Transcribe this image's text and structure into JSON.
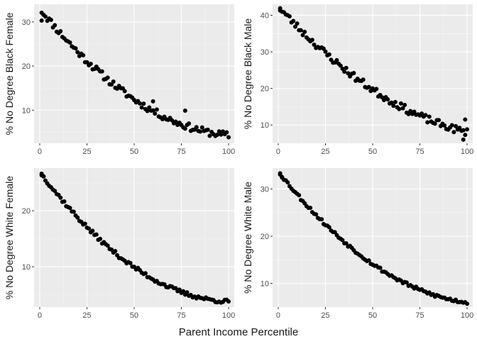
{
  "figure": {
    "xlabel": "Parent Income Percentile"
  },
  "chart_data": [
    {
      "type": "scatter",
      "ylabel": "% No Degree Black Female",
      "xlim": [
        -3,
        103
      ],
      "ylim": [
        2.5,
        34
      ],
      "xticks": [
        0,
        25,
        50,
        75,
        100
      ],
      "yticks": [
        10,
        20,
        30
      ],
      "grid": true,
      "series": [
        {
          "start": [
            0,
            32.5
          ],
          "mid": [
            50,
            12.3
          ],
          "end": [
            100,
            4.3
          ],
          "curve": 1.35,
          "noise": 0.8,
          "seed": 11,
          "outliers": [
            [
              1,
              30.3
            ],
            [
              60,
              12.0
            ],
            [
              77,
              9.9
            ]
          ]
        }
      ]
    },
    {
      "type": "scatter",
      "ylabel": "% No Degree Black Male",
      "xlim": [
        -3,
        103
      ],
      "ylim": [
        5,
        43
      ],
      "xticks": [
        0,
        25,
        50,
        75,
        100
      ],
      "yticks": [
        10,
        20,
        30,
        40
      ],
      "grid": true,
      "series": [
        {
          "start": [
            0,
            41.8
          ],
          "mid": [
            50,
            19.5
          ],
          "end": [
            100,
            8.0
          ],
          "curve": 1.25,
          "noise": 1.0,
          "seed": 23,
          "outliers": [
            [
              1,
              41.9
            ],
            [
              98,
              6.0
            ],
            [
              99,
              11.5
            ]
          ]
        }
      ]
    },
    {
      "type": "scatter",
      "ylabel": "% No Degree White Female",
      "xlim": [
        -3,
        103
      ],
      "ylim": [
        2.8,
        27.6
      ],
      "xticks": [
        0,
        25,
        50,
        75,
        100
      ],
      "yticks": [
        10,
        20
      ],
      "grid": true,
      "series": [
        {
          "start": [
            0,
            26.5
          ],
          "mid": [
            50,
            9.8
          ],
          "end": [
            100,
            3.8
          ],
          "curve": 1.5,
          "noise": 0.35,
          "seed": 37,
          "outliers": [
            [
              1,
              26.6
            ],
            [
              2,
              26.1
            ]
          ]
        }
      ]
    },
    {
      "type": "scatter",
      "ylabel": "% No Degree White Male",
      "xlim": [
        -3,
        103
      ],
      "ylim": [
        5,
        34.4
      ],
      "xticks": [
        0,
        25,
        50,
        75,
        100
      ],
      "yticks": [
        10,
        20,
        30
      ],
      "grid": true,
      "series": [
        {
          "start": [
            0,
            33.2
          ],
          "mid": [
            50,
            14.0
          ],
          "end": [
            100,
            6.0
          ],
          "curve": 1.3,
          "noise": 0.35,
          "seed": 53,
          "outliers": [
            [
              1,
              33.3
            ],
            [
              2,
              32.5
            ]
          ]
        }
      ]
    }
  ]
}
